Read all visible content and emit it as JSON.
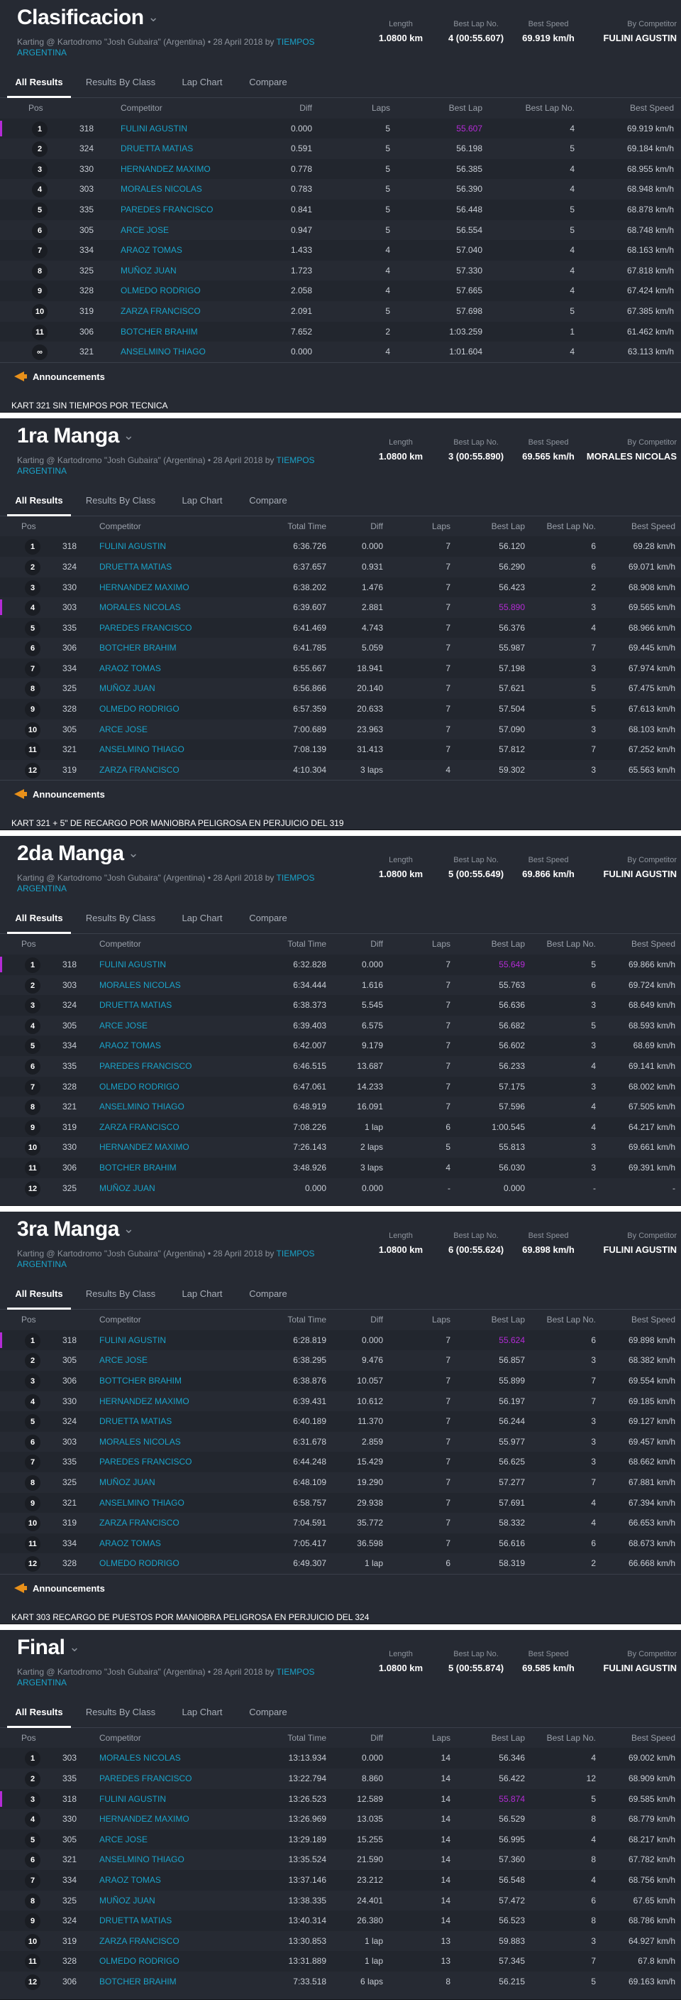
{
  "columns_quali": [
    "Pos",
    "Competitor",
    "Diff",
    "Laps",
    "Best Lap",
    "Best Lap No.",
    "Best Speed"
  ],
  "columns_race": [
    "Pos",
    "Competitor",
    "Total Time",
    "Diff",
    "Laps",
    "Best Lap",
    "Best Lap No.",
    "Best Speed"
  ],
  "tabs": [
    "All Results",
    "Results By Class",
    "Lap Chart",
    "Compare"
  ],
  "stat_labels": [
    "Length",
    "Best Lap No.",
    "Best Speed",
    "By Competitor"
  ],
  "subtitle_prefix": "Karting @ Kartodromo \"Josh Gubaira\" (Argentina) • 28 April 2018 by",
  "subtitle_link": "TIEMPOS ARGENTINA",
  "announcements_label": "Announcements",
  "colors": {
    "panel": "#262a33",
    "link": "#1aa3c9",
    "best": "#b42bd6",
    "ann": "#e8901a"
  },
  "sessions": [
    {
      "title": "Clasificacion",
      "kind": "quali",
      "length": "1.0800 km",
      "best_lap_no": "4 (00:55.607)",
      "best_speed": "69.919 km/h",
      "by_competitor": "FULINI AGUSTIN",
      "rows": [
        {
          "pos": "1",
          "no": "318",
          "competitor": "FULINI AGUSTIN",
          "diff": "0.000",
          "laps": "5",
          "best_lap": "55.607",
          "best_lap_no": "4",
          "best_speed": "69.919 km/h",
          "best": true
        },
        {
          "pos": "2",
          "no": "324",
          "competitor": "DRUETTA MATIAS",
          "diff": "0.591",
          "laps": "5",
          "best_lap": "56.198",
          "best_lap_no": "5",
          "best_speed": "69.184 km/h"
        },
        {
          "pos": "3",
          "no": "330",
          "competitor": "HERNANDEZ MAXIMO",
          "diff": "0.778",
          "laps": "5",
          "best_lap": "56.385",
          "best_lap_no": "4",
          "best_speed": "68.955 km/h"
        },
        {
          "pos": "4",
          "no": "303",
          "competitor": "MORALES NICOLAS",
          "diff": "0.783",
          "laps": "5",
          "best_lap": "56.390",
          "best_lap_no": "4",
          "best_speed": "68.948 km/h"
        },
        {
          "pos": "5",
          "no": "335",
          "competitor": "PAREDES FRANCISCO",
          "diff": "0.841",
          "laps": "5",
          "best_lap": "56.448",
          "best_lap_no": "5",
          "best_speed": "68.878 km/h"
        },
        {
          "pos": "6",
          "no": "305",
          "competitor": "ARCE JOSE",
          "diff": "0.947",
          "laps": "5",
          "best_lap": "56.554",
          "best_lap_no": "5",
          "best_speed": "68.748 km/h"
        },
        {
          "pos": "7",
          "no": "334",
          "competitor": "ARAOZ TOMAS",
          "diff": "1.433",
          "laps": "4",
          "best_lap": "57.040",
          "best_lap_no": "4",
          "best_speed": "68.163 km/h"
        },
        {
          "pos": "8",
          "no": "325",
          "competitor": "MUÑOZ JUAN",
          "diff": "1.723",
          "laps": "4",
          "best_lap": "57.330",
          "best_lap_no": "4",
          "best_speed": "67.818 km/h"
        },
        {
          "pos": "9",
          "no": "328",
          "competitor": "OLMEDO RODRIGO",
          "diff": "2.058",
          "laps": "4",
          "best_lap": "57.665",
          "best_lap_no": "4",
          "best_speed": "67.424 km/h"
        },
        {
          "pos": "10",
          "no": "319",
          "competitor": "ZARZA FRANCISCO",
          "diff": "2.091",
          "laps": "5",
          "best_lap": "57.698",
          "best_lap_no": "5",
          "best_speed": "67.385 km/h"
        },
        {
          "pos": "11",
          "no": "306",
          "competitor": "BOTCHER BRAHIM",
          "diff": "7.652",
          "laps": "2",
          "best_lap": "1:03.259",
          "best_lap_no": "1",
          "best_speed": "61.462 km/h"
        },
        {
          "pos": "∞",
          "no": "321",
          "competitor": "ANSELMINO THIAGO",
          "diff": "0.000",
          "laps": "4",
          "best_lap": "1:01.604",
          "best_lap_no": "4",
          "best_speed": "63.113 km/h"
        }
      ],
      "announcement": "KART 321 SIN TIEMPOS POR TECNICA"
    },
    {
      "title": "1ra Manga",
      "kind": "race",
      "length": "1.0800 km",
      "best_lap_no": "3 (00:55.890)",
      "best_speed": "69.565 km/h",
      "by_competitor": "MORALES NICOLAS",
      "rows": [
        {
          "pos": "1",
          "no": "318",
          "competitor": "FULINI AGUSTIN",
          "total": "6:36.726",
          "diff": "0.000",
          "laps": "7",
          "best_lap": "56.120",
          "best_lap_no": "6",
          "best_speed": "69.28 km/h"
        },
        {
          "pos": "2",
          "no": "324",
          "competitor": "DRUETTA MATIAS",
          "total": "6:37.657",
          "diff": "0.931",
          "laps": "7",
          "best_lap": "56.290",
          "best_lap_no": "6",
          "best_speed": "69.071 km/h"
        },
        {
          "pos": "3",
          "no": "330",
          "competitor": "HERNANDEZ MAXIMO",
          "total": "6:38.202",
          "diff": "1.476",
          "laps": "7",
          "best_lap": "56.423",
          "best_lap_no": "2",
          "best_speed": "68.908 km/h"
        },
        {
          "pos": "4",
          "no": "303",
          "competitor": "MORALES NICOLAS",
          "total": "6:39.607",
          "diff": "2.881",
          "laps": "7",
          "best_lap": "55.890",
          "best_lap_no": "3",
          "best_speed": "69.565 km/h",
          "best": true
        },
        {
          "pos": "5",
          "no": "335",
          "competitor": "PAREDES FRANCISCO",
          "total": "6:41.469",
          "diff": "4.743",
          "laps": "7",
          "best_lap": "56.376",
          "best_lap_no": "4",
          "best_speed": "68.966 km/h"
        },
        {
          "pos": "6",
          "no": "306",
          "competitor": "BOTCHER BRAHIM",
          "total": "6:41.785",
          "diff": "5.059",
          "laps": "7",
          "best_lap": "55.987",
          "best_lap_no": "7",
          "best_speed": "69.445 km/h"
        },
        {
          "pos": "7",
          "no": "334",
          "competitor": "ARAOZ TOMAS",
          "total": "6:55.667",
          "diff": "18.941",
          "laps": "7",
          "best_lap": "57.198",
          "best_lap_no": "3",
          "best_speed": "67.974 km/h"
        },
        {
          "pos": "8",
          "no": "325",
          "competitor": "MUÑOZ JUAN",
          "total": "6:56.866",
          "diff": "20.140",
          "laps": "7",
          "best_lap": "57.621",
          "best_lap_no": "5",
          "best_speed": "67.475 km/h"
        },
        {
          "pos": "9",
          "no": "328",
          "competitor": "OLMEDO RODRIGO",
          "total": "6:57.359",
          "diff": "20.633",
          "laps": "7",
          "best_lap": "57.504",
          "best_lap_no": "5",
          "best_speed": "67.613 km/h"
        },
        {
          "pos": "10",
          "no": "305",
          "competitor": "ARCE JOSE",
          "total": "7:00.689",
          "diff": "23.963",
          "laps": "7",
          "best_lap": "57.090",
          "best_lap_no": "3",
          "best_speed": "68.103 km/h"
        },
        {
          "pos": "11",
          "no": "321",
          "competitor": "ANSELMINO THIAGO",
          "total": "7:08.139",
          "diff": "31.413",
          "laps": "7",
          "best_lap": "57.812",
          "best_lap_no": "7",
          "best_speed": "67.252 km/h"
        },
        {
          "pos": "12",
          "no": "319",
          "competitor": "ZARZA FRANCISCO",
          "total": "4:10.304",
          "diff": "3 laps",
          "laps": "4",
          "best_lap": "59.302",
          "best_lap_no": "3",
          "best_speed": "65.563 km/h"
        }
      ],
      "announcement": "KART 321 + 5\" DE RECARGO POR MANIOBRA PELIGROSA EN PERJUICIO DEL 319"
    },
    {
      "title": "2da Manga",
      "kind": "race",
      "length": "1.0800 km",
      "best_lap_no": "5 (00:55.649)",
      "best_speed": "69.866 km/h",
      "by_competitor": "FULINI AGUSTIN",
      "rows": [
        {
          "pos": "1",
          "no": "318",
          "competitor": "FULINI AGUSTIN",
          "total": "6:32.828",
          "diff": "0.000",
          "laps": "7",
          "best_lap": "55.649",
          "best_lap_no": "5",
          "best_speed": "69.866 km/h",
          "best": true
        },
        {
          "pos": "2",
          "no": "303",
          "competitor": "MORALES NICOLAS",
          "total": "6:34.444",
          "diff": "1.616",
          "laps": "7",
          "best_lap": "55.763",
          "best_lap_no": "6",
          "best_speed": "69.724 km/h"
        },
        {
          "pos": "3",
          "no": "324",
          "competitor": "DRUETTA MATIAS",
          "total": "6:38.373",
          "diff": "5.545",
          "laps": "7",
          "best_lap": "56.636",
          "best_lap_no": "3",
          "best_speed": "68.649 km/h"
        },
        {
          "pos": "4",
          "no": "305",
          "competitor": "ARCE JOSE",
          "total": "6:39.403",
          "diff": "6.575",
          "laps": "7",
          "best_lap": "56.682",
          "best_lap_no": "5",
          "best_speed": "68.593 km/h"
        },
        {
          "pos": "5",
          "no": "334",
          "competitor": "ARAOZ TOMAS",
          "total": "6:42.007",
          "diff": "9.179",
          "laps": "7",
          "best_lap": "56.602",
          "best_lap_no": "3",
          "best_speed": "68.69 km/h"
        },
        {
          "pos": "6",
          "no": "335",
          "competitor": "PAREDES FRANCISCO",
          "total": "6:46.515",
          "diff": "13.687",
          "laps": "7",
          "best_lap": "56.233",
          "best_lap_no": "4",
          "best_speed": "69.141 km/h"
        },
        {
          "pos": "7",
          "no": "328",
          "competitor": "OLMEDO RODRIGO",
          "total": "6:47.061",
          "diff": "14.233",
          "laps": "7",
          "best_lap": "57.175",
          "best_lap_no": "3",
          "best_speed": "68.002 km/h"
        },
        {
          "pos": "8",
          "no": "321",
          "competitor": "ANSELMINO THIAGO",
          "total": "6:48.919",
          "diff": "16.091",
          "laps": "7",
          "best_lap": "57.596",
          "best_lap_no": "4",
          "best_speed": "67.505 km/h"
        },
        {
          "pos": "9",
          "no": "319",
          "competitor": "ZARZA FRANCISCO",
          "total": "7:08.226",
          "diff": "1 lap",
          "laps": "6",
          "best_lap": "1:00.545",
          "best_lap_no": "4",
          "best_speed": "64.217 km/h"
        },
        {
          "pos": "10",
          "no": "330",
          "competitor": "HERNANDEZ MAXIMO",
          "total": "7:26.143",
          "diff": "2 laps",
          "laps": "5",
          "best_lap": "55.813",
          "best_lap_no": "3",
          "best_speed": "69.661 km/h"
        },
        {
          "pos": "11",
          "no": "306",
          "competitor": "BOTCHER BRAHIM",
          "total": "3:48.926",
          "diff": "3 laps",
          "laps": "4",
          "best_lap": "56.030",
          "best_lap_no": "3",
          "best_speed": "69.391 km/h"
        },
        {
          "pos": "12",
          "no": "325",
          "competitor": "MUÑOZ JUAN",
          "total": "0.000",
          "diff": "0.000",
          "laps": "-",
          "best_lap": "0.000",
          "best_lap_no": "-",
          "best_speed": "-"
        }
      ],
      "announcement": ""
    },
    {
      "title": "3ra Manga",
      "kind": "race",
      "length": "1.0800 km",
      "best_lap_no": "6 (00:55.624)",
      "best_speed": "69.898 km/h",
      "by_competitor": "FULINI AGUSTIN",
      "rows": [
        {
          "pos": "1",
          "no": "318",
          "competitor": "FULINI AGUSTIN",
          "total": "6:28.819",
          "diff": "0.000",
          "laps": "7",
          "best_lap": "55.624",
          "best_lap_no": "6",
          "best_speed": "69.898 km/h",
          "best": true
        },
        {
          "pos": "2",
          "no": "305",
          "competitor": "ARCE JOSE",
          "total": "6:38.295",
          "diff": "9.476",
          "laps": "7",
          "best_lap": "56.857",
          "best_lap_no": "3",
          "best_speed": "68.382 km/h"
        },
        {
          "pos": "3",
          "no": "306",
          "competitor": "BOTTCHER BRAHIM",
          "total": "6:38.876",
          "diff": "10.057",
          "laps": "7",
          "best_lap": "55.899",
          "best_lap_no": "7",
          "best_speed": "69.554 km/h"
        },
        {
          "pos": "4",
          "no": "330",
          "competitor": "HERNANDEZ MAXIMO",
          "total": "6:39.431",
          "diff": "10.612",
          "laps": "7",
          "best_lap": "56.197",
          "best_lap_no": "7",
          "best_speed": "69.185 km/h"
        },
        {
          "pos": "5",
          "no": "324",
          "competitor": "DRUETTA MATIAS",
          "total": "6:40.189",
          "diff": "11.370",
          "laps": "7",
          "best_lap": "56.244",
          "best_lap_no": "3",
          "best_speed": "69.127 km/h"
        },
        {
          "pos": "6",
          "no": "303",
          "competitor": "MORALES NICOLAS",
          "total": "6:31.678",
          "diff": "2.859",
          "laps": "7",
          "best_lap": "55.977",
          "best_lap_no": "3",
          "best_speed": "69.457 km/h"
        },
        {
          "pos": "7",
          "no": "335",
          "competitor": "PAREDES FRANCISCO",
          "total": "6:44.248",
          "diff": "15.429",
          "laps": "7",
          "best_lap": "56.625",
          "best_lap_no": "3",
          "best_speed": "68.662 km/h"
        },
        {
          "pos": "8",
          "no": "325",
          "competitor": "MUÑOZ JUAN",
          "total": "6:48.109",
          "diff": "19.290",
          "laps": "7",
          "best_lap": "57.277",
          "best_lap_no": "7",
          "best_speed": "67.881 km/h"
        },
        {
          "pos": "9",
          "no": "321",
          "competitor": "ANSELMINO THIAGO",
          "total": "6:58.757",
          "diff": "29.938",
          "laps": "7",
          "best_lap": "57.691",
          "best_lap_no": "4",
          "best_speed": "67.394 km/h"
        },
        {
          "pos": "10",
          "no": "319",
          "competitor": "ZARZA FRANCISCO",
          "total": "7:04.591",
          "diff": "35.772",
          "laps": "7",
          "best_lap": "58.332",
          "best_lap_no": "4",
          "best_speed": "66.653 km/h"
        },
        {
          "pos": "11",
          "no": "334",
          "competitor": "ARAOZ TOMAS",
          "total": "7:05.417",
          "diff": "36.598",
          "laps": "7",
          "best_lap": "56.616",
          "best_lap_no": "6",
          "best_speed": "68.673 km/h"
        },
        {
          "pos": "12",
          "no": "328",
          "competitor": "OLMEDO RODRIGO",
          "total": "6:49.307",
          "diff": "1 lap",
          "laps": "6",
          "best_lap": "58.319",
          "best_lap_no": "2",
          "best_speed": "66.668 km/h"
        }
      ],
      "announcement": "KART 303 RECARGO DE PUESTOS POR MANIOBRA PELIGROSA EN PERJUICIO DEL 324"
    },
    {
      "title": "Final",
      "kind": "race",
      "length": "1.0800 km",
      "best_lap_no": "5 (00:55.874)",
      "best_speed": "69.585 km/h",
      "by_competitor": "FULINI AGUSTIN",
      "rows": [
        {
          "pos": "1",
          "no": "303",
          "competitor": "MORALES NICOLAS",
          "total": "13:13.934",
          "diff": "0.000",
          "laps": "14",
          "best_lap": "56.346",
          "best_lap_no": "4",
          "best_speed": "69.002 km/h"
        },
        {
          "pos": "2",
          "no": "335",
          "competitor": "PAREDES FRANCISCO",
          "total": "13:22.794",
          "diff": "8.860",
          "laps": "14",
          "best_lap": "56.422",
          "best_lap_no": "12",
          "best_speed": "68.909 km/h"
        },
        {
          "pos": "3",
          "no": "318",
          "competitor": "FULINI AGUSTIN",
          "total": "13:26.523",
          "diff": "12.589",
          "laps": "14",
          "best_lap": "55.874",
          "best_lap_no": "5",
          "best_speed": "69.585 km/h",
          "best": true
        },
        {
          "pos": "4",
          "no": "330",
          "competitor": "HERNANDEZ MAXIMO",
          "total": "13:26.969",
          "diff": "13.035",
          "laps": "14",
          "best_lap": "56.529",
          "best_lap_no": "8",
          "best_speed": "68.779 km/h"
        },
        {
          "pos": "5",
          "no": "305",
          "competitor": "ARCE JOSE",
          "total": "13:29.189",
          "diff": "15.255",
          "laps": "14",
          "best_lap": "56.995",
          "best_lap_no": "4",
          "best_speed": "68.217 km/h"
        },
        {
          "pos": "6",
          "no": "321",
          "competitor": "ANSELMINO THIAGO",
          "total": "13:35.524",
          "diff": "21.590",
          "laps": "14",
          "best_lap": "57.360",
          "best_lap_no": "8",
          "best_speed": "67.782 km/h"
        },
        {
          "pos": "7",
          "no": "334",
          "competitor": "ARAOZ TOMAS",
          "total": "13:37.146",
          "diff": "23.212",
          "laps": "14",
          "best_lap": "56.548",
          "best_lap_no": "4",
          "best_speed": "68.756 km/h"
        },
        {
          "pos": "8",
          "no": "325",
          "competitor": "MUÑOZ JUAN",
          "total": "13:38.335",
          "diff": "24.401",
          "laps": "14",
          "best_lap": "57.472",
          "best_lap_no": "6",
          "best_speed": "67.65 km/h"
        },
        {
          "pos": "9",
          "no": "324",
          "competitor": "DRUETTA MATIAS",
          "total": "13:40.314",
          "diff": "26.380",
          "laps": "14",
          "best_lap": "56.523",
          "best_lap_no": "8",
          "best_speed": "68.786 km/h"
        },
        {
          "pos": "10",
          "no": "319",
          "competitor": "ZARZA FRANCISCO",
          "total": "13:30.853",
          "diff": "1 lap",
          "laps": "13",
          "best_lap": "59.883",
          "best_lap_no": "3",
          "best_speed": "64.927 km/h"
        },
        {
          "pos": "11",
          "no": "328",
          "competitor": "OLMEDO RODRIGO",
          "total": "13:31.889",
          "diff": "1 lap",
          "laps": "13",
          "best_lap": "57.345",
          "best_lap_no": "7",
          "best_speed": "67.8 km/h"
        },
        {
          "pos": "12",
          "no": "306",
          "competitor": "BOTCHER BRAHIM",
          "total": "7:33.518",
          "diff": "6 laps",
          "laps": "8",
          "best_lap": "56.215",
          "best_lap_no": "5",
          "best_speed": "69.163 km/h"
        }
      ],
      "announcement": ""
    }
  ]
}
